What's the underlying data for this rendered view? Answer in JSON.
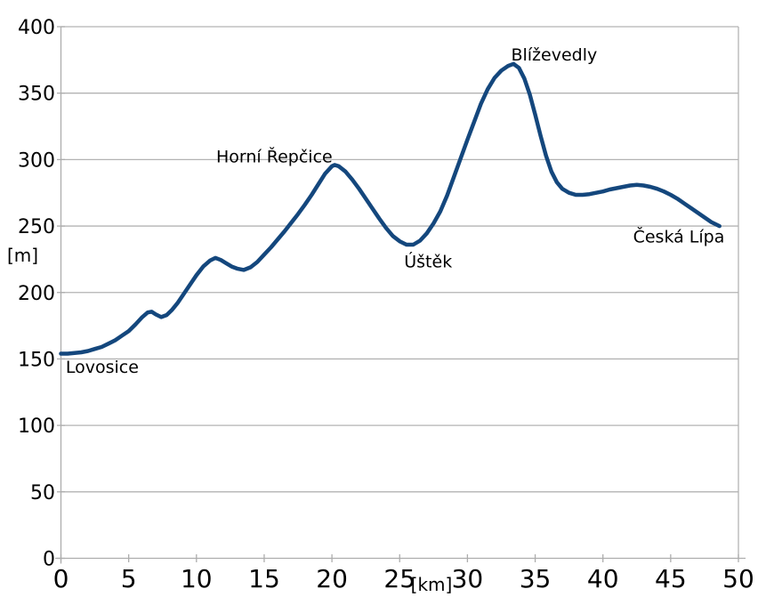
{
  "chart_data": {
    "type": "line",
    "title": "",
    "xlabel": "[km]",
    "ylabel": "[m]",
    "xlim": [
      0,
      50
    ],
    "ylim": [
      0,
      400
    ],
    "x_ticks": [
      0,
      5,
      10,
      15,
      20,
      25,
      30,
      35,
      40,
      45,
      50
    ],
    "y_ticks": [
      0,
      50,
      100,
      150,
      200,
      250,
      300,
      350,
      400
    ],
    "grid": "horizontal",
    "legend": "none",
    "series": [
      {
        "name": "elevation-profile",
        "color": "#14477d",
        "points": [
          [
            0,
            154
          ],
          [
            0.5,
            154
          ],
          [
            1,
            154.5
          ],
          [
            1.5,
            155
          ],
          [
            2,
            156
          ],
          [
            2.5,
            157.5
          ],
          [
            3,
            159
          ],
          [
            3.5,
            161.5
          ],
          [
            4,
            164
          ],
          [
            4.5,
            167.5
          ],
          [
            5,
            171
          ],
          [
            5.5,
            176
          ],
          [
            6,
            181.5
          ],
          [
            6.4,
            185
          ],
          [
            6.7,
            185.5
          ],
          [
            7,
            183.5
          ],
          [
            7.4,
            181.5
          ],
          [
            7.8,
            183
          ],
          [
            8.2,
            187
          ],
          [
            8.6,
            192
          ],
          [
            9,
            198
          ],
          [
            9.5,
            205.5
          ],
          [
            10,
            213
          ],
          [
            10.5,
            219.5
          ],
          [
            11,
            224
          ],
          [
            11.4,
            226
          ],
          [
            11.8,
            224.5
          ],
          [
            12.2,
            222
          ],
          [
            12.6,
            219.5
          ],
          [
            13,
            218
          ],
          [
            13.5,
            217
          ],
          [
            14,
            219
          ],
          [
            14.5,
            223
          ],
          [
            15,
            228.5
          ],
          [
            15.5,
            234
          ],
          [
            16,
            240
          ],
          [
            16.5,
            246
          ],
          [
            17,
            252.5
          ],
          [
            17.5,
            259
          ],
          [
            18,
            266
          ],
          [
            18.5,
            273.5
          ],
          [
            19,
            281.5
          ],
          [
            19.5,
            289.5
          ],
          [
            20,
            295
          ],
          [
            20.2,
            296
          ],
          [
            20.5,
            295
          ],
          [
            21,
            291
          ],
          [
            21.5,
            285
          ],
          [
            22,
            278
          ],
          [
            22.5,
            270.5
          ],
          [
            23,
            263
          ],
          [
            23.5,
            255.5
          ],
          [
            24,
            248.5
          ],
          [
            24.5,
            242.5
          ],
          [
            25,
            238.5
          ],
          [
            25.5,
            236
          ],
          [
            26,
            236
          ],
          [
            26.5,
            239
          ],
          [
            27,
            244.5
          ],
          [
            27.5,
            252
          ],
          [
            28,
            261
          ],
          [
            28.5,
            273
          ],
          [
            29,
            287
          ],
          [
            29.5,
            301
          ],
          [
            30,
            315
          ],
          [
            30.5,
            328.5
          ],
          [
            31,
            342
          ],
          [
            31.5,
            353
          ],
          [
            32,
            361.5
          ],
          [
            32.5,
            367
          ],
          [
            33,
            370.5
          ],
          [
            33.4,
            372
          ],
          [
            33.8,
            369
          ],
          [
            34.2,
            361
          ],
          [
            34.6,
            349
          ],
          [
            35,
            334
          ],
          [
            35.4,
            318
          ],
          [
            35.8,
            303
          ],
          [
            36.2,
            291
          ],
          [
            36.6,
            283
          ],
          [
            37,
            278
          ],
          [
            37.5,
            275
          ],
          [
            38,
            273.5
          ],
          [
            38.5,
            273.5
          ],
          [
            39,
            274
          ],
          [
            39.5,
            275
          ],
          [
            40,
            276
          ],
          [
            40.5,
            277.5
          ],
          [
            41,
            278.5
          ],
          [
            41.5,
            279.5
          ],
          [
            42,
            280.5
          ],
          [
            42.5,
            281
          ],
          [
            43,
            280.5
          ],
          [
            43.5,
            279.5
          ],
          [
            44,
            278
          ],
          [
            44.5,
            276
          ],
          [
            45,
            273.5
          ],
          [
            45.5,
            270.5
          ],
          [
            46,
            267
          ],
          [
            46.5,
            263.5
          ],
          [
            47,
            260
          ],
          [
            47.5,
            256.5
          ],
          [
            48,
            253
          ],
          [
            48.6,
            250
          ]
        ]
      }
    ],
    "annotations": [
      {
        "id": "lovosice",
        "text": "Lovosice",
        "km": 0.35,
        "m": 139.5,
        "anchor": "start"
      },
      {
        "id": "horni-repcice",
        "text": "Horní Řepčice",
        "km": 15.75,
        "m": 298,
        "anchor": "middle"
      },
      {
        "id": "ustek",
        "text": "Úštěk",
        "km": 27.1,
        "m": 219,
        "anchor": "middle"
      },
      {
        "id": "blizevedly",
        "text": "Blíževedly",
        "km": 36.4,
        "m": 374.5,
        "anchor": "middle"
      },
      {
        "id": "ceska-lipa",
        "text": "Česká Lípa",
        "km": 45.6,
        "m": 237.5,
        "anchor": "middle"
      }
    ],
    "colors": {
      "line": "#14477d",
      "grid": "#b3b3b3",
      "axis": "#adadad",
      "text": "#000000",
      "background": "#ffffff"
    }
  }
}
